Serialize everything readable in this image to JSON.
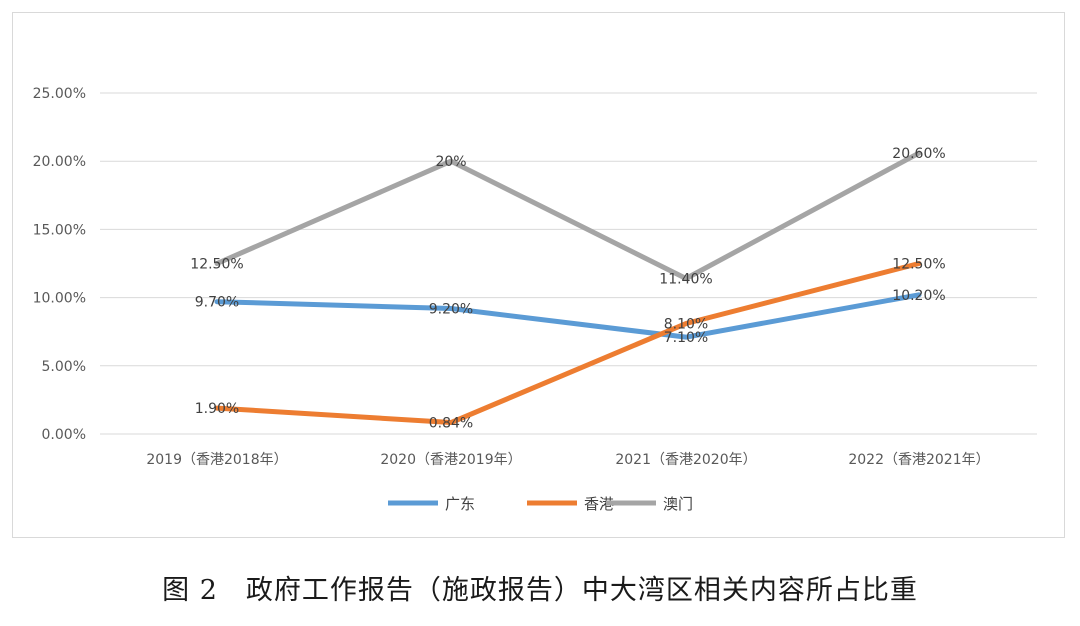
{
  "chart_data": {
    "type": "line",
    "categories": [
      "2019（香港2018年）",
      "2020（香港2019年）",
      "2021（香港2020年）",
      "2022（香港2021年）"
    ],
    "ylim": [
      0,
      25
    ],
    "yticks": [
      "0.00%",
      "5.00%",
      "10.00%",
      "15.00%",
      "20.00%",
      "25.00%"
    ],
    "ytick_values": [
      0,
      5,
      10,
      15,
      20,
      25
    ],
    "grid": true,
    "legend_position": "bottom",
    "series": [
      {
        "name": "广东",
        "color": "#5b9bd5",
        "values": [
          9.7,
          9.2,
          7.1,
          10.2
        ],
        "labels": [
          "9.70%",
          "9.20%",
          "7.10%",
          "10.20%"
        ]
      },
      {
        "name": "香港",
        "color": "#ed7d31",
        "values": [
          1.9,
          0.84,
          8.1,
          12.5
        ],
        "labels": [
          "1.90%",
          "0.84%",
          "8.10%",
          "12.50%"
        ]
      },
      {
        "name": "澳门",
        "color": "#a5a5a5",
        "values": [
          12.5,
          20,
          11.4,
          20.6
        ],
        "labels": [
          "12.50%",
          "20%",
          "11.40%",
          "20.60%"
        ]
      }
    ]
  },
  "caption": "图 2　政府工作报告（施政报告）中大湾区相关内容所占比重"
}
